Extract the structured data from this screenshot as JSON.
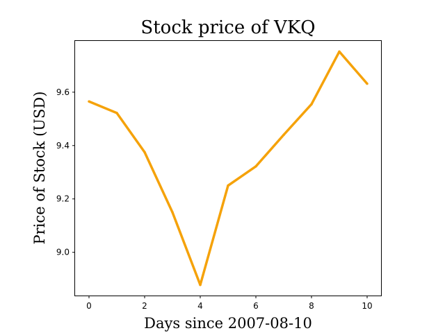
{
  "chart_data": {
    "type": "line",
    "title": "Stock price of VKQ",
    "xlabel": "Days since 2007-08-10",
    "ylabel": "Price of Stock (USD)",
    "x": [
      0,
      1,
      2,
      3,
      4,
      5,
      6,
      7,
      8,
      9,
      10
    ],
    "series": [
      {
        "values": [
          9.565,
          9.522,
          9.375,
          9.15,
          8.878,
          9.25,
          9.322,
          9.44,
          9.555,
          9.752,
          9.632
        ],
        "color": "#f5a20a"
      }
    ],
    "xlim": [
      -0.5,
      10.5
    ],
    "ylim": [
      8.838,
      9.792
    ],
    "xticks": [
      0,
      2,
      4,
      6,
      8,
      10
    ],
    "yticks": [
      9.0,
      9.2,
      9.4,
      9.6
    ],
    "xtick_labels": [
      "0",
      "2",
      "4",
      "6",
      "8",
      "10"
    ],
    "ytick_labels": [
      "9.0",
      "9.2",
      "9.4",
      "9.6"
    ],
    "grid": false,
    "legend": "none"
  }
}
